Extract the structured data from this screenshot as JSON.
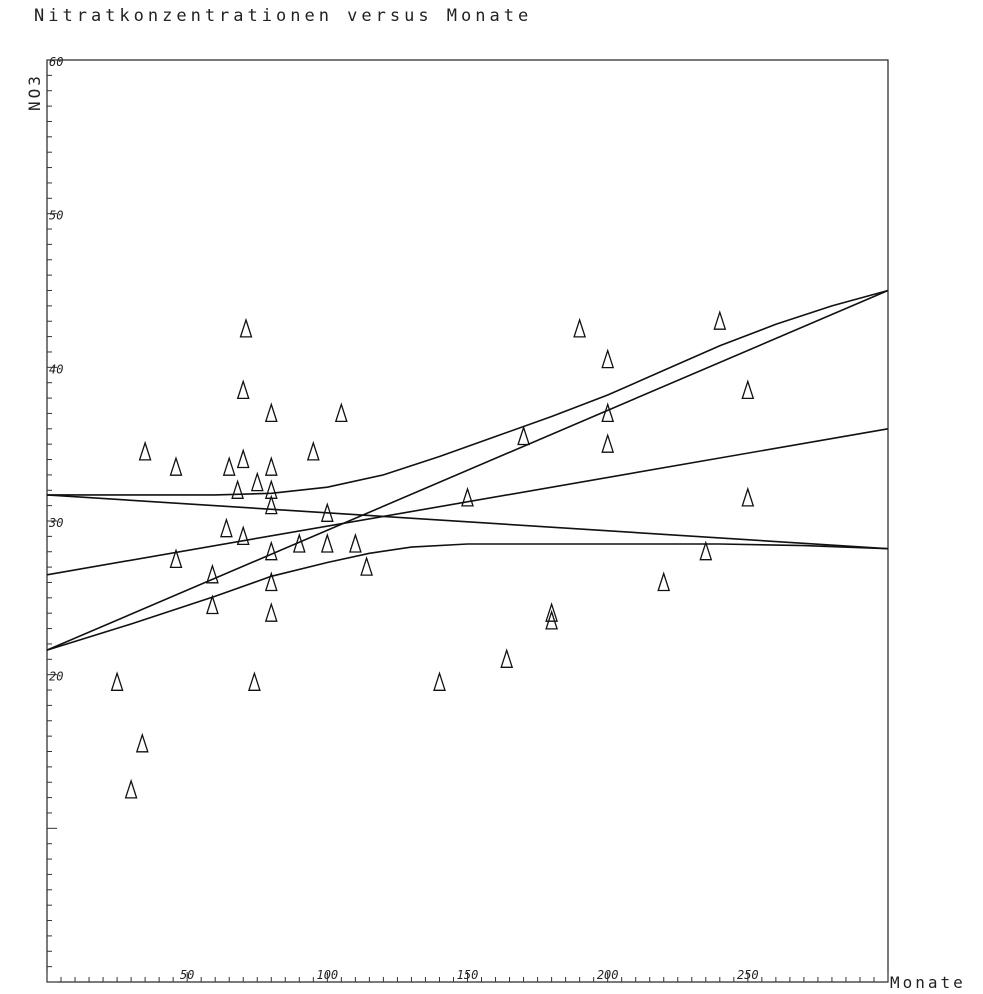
{
  "chart_data": {
    "type": "scatter",
    "title": "Nitratkonzentrationen versus Monate",
    "xlabel": "Monate",
    "ylabel": "NO3",
    "xlim": [
      0,
      300
    ],
    "ylim": [
      0,
      60
    ],
    "x_ticks": [
      50,
      100,
      150,
      200,
      250
    ],
    "y_ticks": [
      20,
      30,
      40,
      50,
      60
    ],
    "x_tick_labels": [
      "50",
      "100",
      "150",
      "200",
      "250"
    ],
    "y_tick_labels": [
      "20",
      "30",
      "40",
      "50",
      "60"
    ],
    "marker": "triangle",
    "points": [
      {
        "x": 25,
        "y": 19.5
      },
      {
        "x": 30,
        "y": 12.5
      },
      {
        "x": 34,
        "y": 15.5
      },
      {
        "x": 35,
        "y": 34.5
      },
      {
        "x": 46,
        "y": 27.5
      },
      {
        "x": 46,
        "y": 33.5
      },
      {
        "x": 59,
        "y": 26.5
      },
      {
        "x": 59,
        "y": 24.5
      },
      {
        "x": 64,
        "y": 29.5
      },
      {
        "x": 65,
        "y": 33.5
      },
      {
        "x": 68,
        "y": 32
      },
      {
        "x": 70,
        "y": 29
      },
      {
        "x": 70,
        "y": 34
      },
      {
        "x": 70,
        "y": 38.5
      },
      {
        "x": 71,
        "y": 42.5
      },
      {
        "x": 74,
        "y": 19.5
      },
      {
        "x": 75,
        "y": 32.5
      },
      {
        "x": 80,
        "y": 28
      },
      {
        "x": 80,
        "y": 26
      },
      {
        "x": 80,
        "y": 24
      },
      {
        "x": 80,
        "y": 31
      },
      {
        "x": 80,
        "y": 32
      },
      {
        "x": 80,
        "y": 33.5
      },
      {
        "x": 80,
        "y": 37
      },
      {
        "x": 90,
        "y": 28.5
      },
      {
        "x": 95,
        "y": 34.5
      },
      {
        "x": 100,
        "y": 28.5
      },
      {
        "x": 100,
        "y": 30.5
      },
      {
        "x": 105,
        "y": 37
      },
      {
        "x": 110,
        "y": 28.5
      },
      {
        "x": 114,
        "y": 27
      },
      {
        "x": 140,
        "y": 19.5
      },
      {
        "x": 150,
        "y": 31.5
      },
      {
        "x": 164,
        "y": 21
      },
      {
        "x": 170,
        "y": 35.5
      },
      {
        "x": 180,
        "y": 24
      },
      {
        "x": 180,
        "y": 23.5
      },
      {
        "x": 190,
        "y": 42.5
      },
      {
        "x": 200,
        "y": 40.5
      },
      {
        "x": 200,
        "y": 37
      },
      {
        "x": 200,
        "y": 35
      },
      {
        "x": 220,
        "y": 26
      },
      {
        "x": 235,
        "y": 28
      },
      {
        "x": 240,
        "y": 43
      },
      {
        "x": 250,
        "y": 38.5
      },
      {
        "x": 250,
        "y": 31.5
      }
    ],
    "lines": [
      {
        "points": [
          [
            0,
            31.7
          ],
          [
            300,
            28.2
          ]
        ]
      },
      {
        "points": [
          [
            0,
            26.5
          ],
          [
            300,
            36
          ]
        ]
      },
      {
        "points": [
          [
            0,
            21.6
          ],
          [
            300,
            45
          ]
        ]
      },
      {
        "points": [
          [
            0,
            21.6
          ],
          [
            30,
            23.3
          ],
          [
            60,
            25.1
          ],
          [
            80,
            26.4
          ],
          [
            100,
            27.3
          ],
          [
            115,
            27.9
          ],
          [
            130,
            28.3
          ],
          [
            150,
            28.5
          ],
          [
            180,
            28.5
          ],
          [
            210,
            28.5
          ],
          [
            240,
            28.5
          ],
          [
            270,
            28.4
          ],
          [
            300,
            28.2
          ]
        ]
      },
      {
        "points": [
          [
            0,
            31.7
          ],
          [
            30,
            31.7
          ],
          [
            60,
            31.7
          ],
          [
            80,
            31.8
          ],
          [
            100,
            32.2
          ],
          [
            120,
            33
          ],
          [
            140,
            34.2
          ],
          [
            160,
            35.5
          ],
          [
            180,
            36.8
          ],
          [
            200,
            38.2
          ],
          [
            220,
            39.8
          ],
          [
            240,
            41.4
          ],
          [
            260,
            42.8
          ],
          [
            280,
            44
          ],
          [
            300,
            45
          ]
        ]
      }
    ]
  }
}
